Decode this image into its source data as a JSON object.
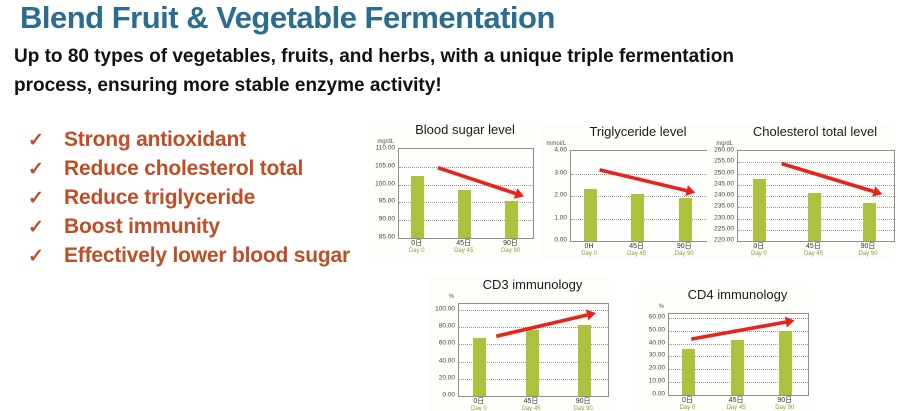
{
  "slide": {
    "title": "Blend Fruit & Vegetable Fermentation",
    "subtitle": "Up to 80 types of vegetables, fruits, and herbs, with a unique triple fermentation process, ensuring more stable enzyme activity!",
    "bullet_marker": "✓",
    "bullets": [
      "Strong antioxidant",
      "Reduce cholesterol total",
      "Reduce triglyceride",
      "Boost immunity",
      "Effectively lower blood sugar"
    ],
    "colors": {
      "title": "#2b6d90",
      "bullet": "#bf4d26",
      "bar": "#aec13e",
      "arrow": "#e8231b",
      "day_label": "#8f9e35"
    }
  },
  "chart_data": [
    {
      "type": "bar",
      "title": "Blood sugar level",
      "ylabel": "mg/dL",
      "unit": "mg/dL",
      "categories": [
        "0日",
        "45日",
        "90日"
      ],
      "categories_en": [
        "Day 0",
        "Day 45",
        "Day 90"
      ],
      "values": [
        102.5,
        98.5,
        95.3
      ],
      "ylim": [
        85,
        110
      ],
      "ytop": 110,
      "yticks": [
        110,
        105,
        100,
        95,
        90,
        85
      ],
      "trend": "down",
      "arrow": {
        "x1": 0.29,
        "y1": 0.21,
        "x2": 0.87,
        "y2": 0.5
      }
    },
    {
      "type": "bar",
      "title": "Triglyceride level",
      "ylabel": "mmol/L",
      "unit": "mmol/L",
      "categories": [
        "0H",
        "45日",
        "90日"
      ],
      "categories_en": [
        "Day 0",
        "Day 45",
        "Day 90"
      ],
      "values": [
        2.32,
        2.1,
        1.93
      ],
      "ylim": [
        0,
        4
      ],
      "ytop": 4,
      "yticks": [
        4,
        3,
        2,
        1,
        0
      ],
      "trend": "down",
      "arrow": {
        "x1": 0.21,
        "y1": 0.21,
        "x2": 0.85,
        "y2": 0.44
      }
    },
    {
      "type": "bar",
      "title": "Cholesterol total level",
      "ylabel": "mg/dL",
      "unit": "mg/dL",
      "categories": [
        "0日",
        "45日",
        "90日"
      ],
      "categories_en": [
        "Day 0",
        "Day 45",
        "Day 90"
      ],
      "values": [
        247.5,
        241.5,
        237
      ],
      "ylim": [
        220,
        260
      ],
      "ytop": 260,
      "yticks": [
        260,
        255,
        250,
        245,
        240,
        235,
        230,
        225,
        220
      ],
      "trend": "down",
      "arrow": {
        "x1": 0.28,
        "y1": 0.14,
        "x2": 0.87,
        "y2": 0.45
      }
    },
    {
      "type": "bar",
      "title": "CD3 immunology",
      "ylabel": "%",
      "unit": "%",
      "categories": [
        "0日",
        "45日",
        "90日"
      ],
      "categories_en": [
        "Day 0",
        "Day 45",
        "Day 90"
      ],
      "values": [
        67.5,
        76.5,
        82.5
      ],
      "ylim": [
        0,
        100
      ],
      "ytop": 107,
      "yticks": [
        100,
        80,
        60,
        40,
        20,
        0
      ],
      "trend": "up",
      "arrow": {
        "x1": 0.25,
        "y1": 0.35,
        "x2": 0.86,
        "y2": 0.12
      }
    },
    {
      "type": "bar",
      "title": "CD4 immunology",
      "ylabel": "%",
      "unit": "%",
      "categories": [
        "0日",
        "45日",
        "90日"
      ],
      "categories_en": [
        "Day 0",
        "Day 45",
        "Day 90"
      ],
      "values": [
        35.5,
        42.5,
        49.5
      ],
      "ylim": [
        0,
        60
      ],
      "ytop": 63,
      "yticks": [
        60,
        50,
        40,
        30,
        20,
        10,
        0
      ],
      "trend": "up",
      "arrow": {
        "x1": 0.16,
        "y1": 0.31,
        "x2": 0.84,
        "y2": 0.1
      }
    }
  ]
}
